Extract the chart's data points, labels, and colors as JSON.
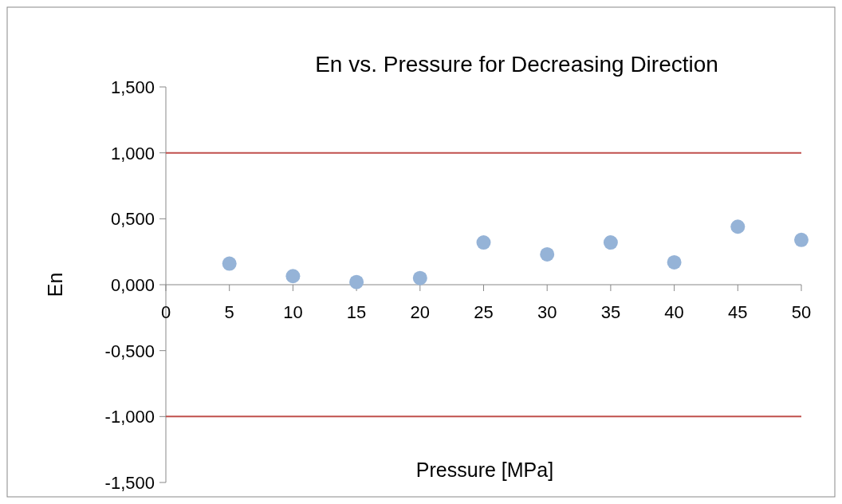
{
  "chart_data": {
    "type": "scatter",
    "title": "En vs. Pressure for Decreasing Direction",
    "xlabel": "Pressure [MPa]",
    "ylabel": "En",
    "x": [
      5,
      10,
      15,
      20,
      25,
      30,
      35,
      40,
      45,
      50
    ],
    "series": [
      {
        "color": "#95b3d7",
        "values": [
          0.16,
          0.065,
          0.02,
          0.05,
          0.32,
          0.23,
          0.32,
          0.17,
          0.44,
          0.34
        ]
      }
    ],
    "ref_lines": [
      {
        "axis": "y",
        "value": 1,
        "color": "#c0504d"
      },
      {
        "axis": "y",
        "value": -1,
        "color": "#c0504d"
      }
    ],
    "xlim": [
      0,
      50
    ],
    "xticks": [
      0,
      5,
      10,
      15,
      20,
      25,
      30,
      35,
      40,
      45,
      50
    ],
    "ylim": [
      -1.5,
      1.5
    ],
    "yticks": [
      {
        "value": -1.5,
        "label": "-1,500"
      },
      {
        "value": -1,
        "label": "-1,000"
      },
      {
        "value": -0.5,
        "label": "-0,500"
      },
      {
        "value": 0,
        "label": "0,000"
      },
      {
        "value": 0.5,
        "label": "0,500"
      },
      {
        "value": 1,
        "label": "1,000"
      },
      {
        "value": 1.5,
        "label": "1,500"
      }
    ],
    "marker": "circle",
    "grid": false
  }
}
